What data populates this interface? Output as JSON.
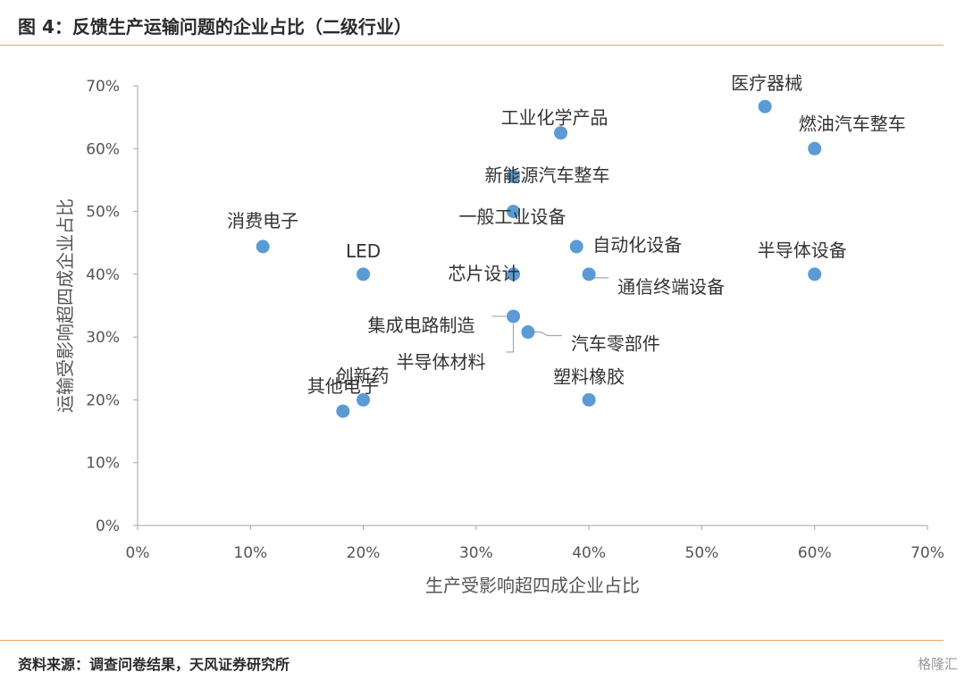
{
  "title": "图 4：反馈生产运输问题的企业占比（二级行业）",
  "source": "资料来源：调查问卷结果，天风证券研究所",
  "watermark": "格隆汇",
  "colors": {
    "marker": "#5b9bd5",
    "axis": "#a6a6a6",
    "leader": "#a6a6a6",
    "accent_rule": "#e8a86a"
  },
  "chart_data": {
    "type": "scatter",
    "xlabel": "生产受影响超四成企业占比",
    "ylabel": "运输受影响超四成企业占比",
    "xlim": [
      0,
      0.7
    ],
    "ylim": [
      0,
      0.7
    ],
    "x_ticks": [
      0,
      0.1,
      0.2,
      0.3,
      0.4,
      0.5,
      0.6,
      0.7
    ],
    "y_ticks": [
      0,
      0.1,
      0.2,
      0.3,
      0.4,
      0.5,
      0.6,
      0.7
    ],
    "x_tick_labels": [
      "0%",
      "10%",
      "20%",
      "30%",
      "40%",
      "50%",
      "60%",
      "70%"
    ],
    "y_tick_labels": [
      "0%",
      "10%",
      "20%",
      "30%",
      "40%",
      "50%",
      "60%",
      "70%"
    ],
    "grid": false,
    "points": [
      {
        "label": "医疗器械",
        "x": 0.556,
        "y": 0.667
      },
      {
        "label": "燃油汽车整车",
        "x": 0.6,
        "y": 0.6
      },
      {
        "label": "工业化学产品",
        "x": 0.375,
        "y": 0.625
      },
      {
        "label": "新能源汽车整车",
        "x": 0.333,
        "y": 0.556
      },
      {
        "label": "一般工业设备",
        "x": 0.333,
        "y": 0.5
      },
      {
        "label": "消费电子",
        "x": 0.111,
        "y": 0.444
      },
      {
        "label": "LED",
        "x": 0.2,
        "y": 0.4
      },
      {
        "label": "自动化设备",
        "x": 0.389,
        "y": 0.444
      },
      {
        "label": "半导体设备",
        "x": 0.6,
        "y": 0.4
      },
      {
        "label": "芯片设计",
        "x": 0.333,
        "y": 0.4
      },
      {
        "label": "通信终端设备",
        "x": 0.4,
        "y": 0.4
      },
      {
        "label": "集成电路制造",
        "x": 0.333,
        "y": 0.333
      },
      {
        "label": "汽车零部件",
        "x": 0.346,
        "y": 0.308
      },
      {
        "label": "半导体材料",
        "x": 0.333,
        "y": 0.333
      },
      {
        "label": "塑料橡胶",
        "x": 0.4,
        "y": 0.2
      },
      {
        "label": "创新药",
        "x": 0.2,
        "y": 0.2
      },
      {
        "label": "其他电子",
        "x": 0.182,
        "y": 0.182
      }
    ]
  }
}
